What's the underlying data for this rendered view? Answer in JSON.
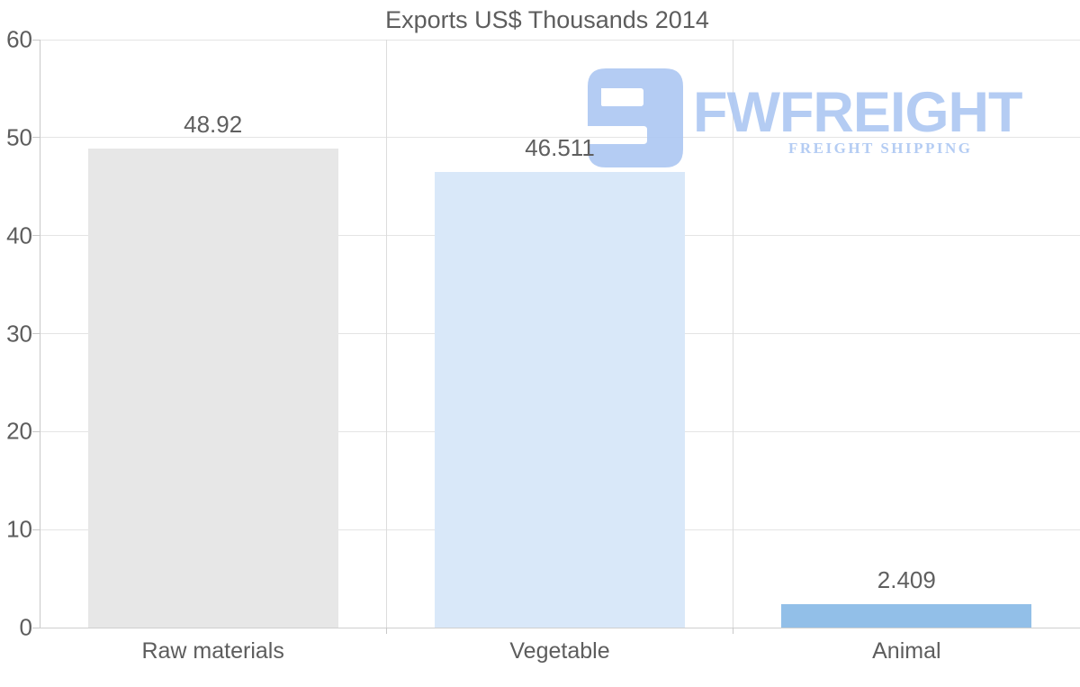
{
  "page": {
    "background": "#ffffff"
  },
  "chart_data": {
    "type": "bar",
    "title": "Exports US$ Thousands 2014",
    "categories": [
      "Raw materials",
      "Vegetable",
      "Animal"
    ],
    "values": [
      48.92,
      46.511,
      2.409
    ],
    "value_labels": [
      "48.92",
      "46.511",
      "2.409"
    ],
    "bar_colors": [
      "#e7e7e7",
      "#d9e8f9",
      "#92bfe8"
    ],
    "xlabel": "",
    "ylabel": "",
    "ylim": [
      0,
      60
    ],
    "y_ticks": [
      0,
      10,
      20,
      30,
      40,
      50,
      60
    ],
    "grid": true,
    "legend": "none"
  },
  "watermark": {
    "brand": "FWFREIGHT",
    "tagline": "FREIGHT SHIPPING",
    "color": "#aac6f2"
  }
}
